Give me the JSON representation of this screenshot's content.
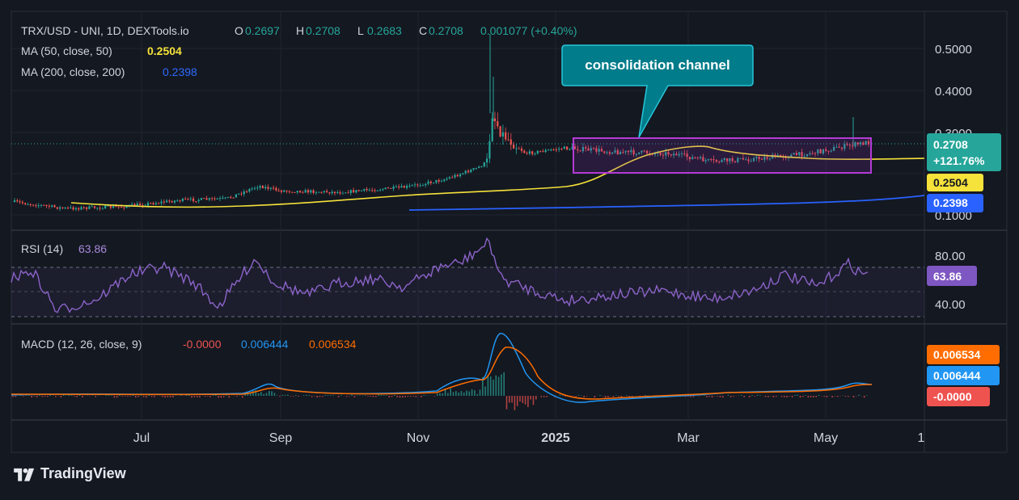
{
  "header": {
    "symbol": "TRX/USD - UNI, 1D, DEXTools.io",
    "ohlc": [
      {
        "k": "O",
        "v": "0.2697"
      },
      {
        "k": "H",
        "v": "0.2708"
      },
      {
        "k": "L",
        "v": "0.2683"
      },
      {
        "k": "C",
        "v": "0.2708"
      }
    ],
    "change": "0.001077 (+0.40%)",
    "ma50_label": "MA (50, close, 50)",
    "ma50_value": "0.2504",
    "ma200_label": "MA (200, close, 200)",
    "ma200_value": "0.2398"
  },
  "annotation": {
    "text": "consolidation channel"
  },
  "price_axis": {
    "ticks": [
      "0.5000",
      "0.4000",
      "0.3000",
      "0.1000"
    ]
  },
  "price_badges": {
    "last_price": "0.2708",
    "last_change": "+121.76%",
    "ma50": "0.2504",
    "ma200": "0.2398"
  },
  "rsi": {
    "label": "RSI (14)",
    "value": "63.86",
    "ticks": [
      "80.00",
      "40.00"
    ]
  },
  "macd": {
    "label": "MACD (12, 26, close, 9)",
    "hist": "-0.0000",
    "macd": "0.006444",
    "signal": "0.006534",
    "badges": [
      "0.006534",
      "0.006444",
      "-0.0000"
    ]
  },
  "time_axis": {
    "labels": [
      "Jul",
      "Sep",
      "Nov",
      "2025",
      "Mar",
      "May",
      "1"
    ]
  },
  "brand": {
    "name": "TradingView"
  },
  "colors": {
    "background": "#141821",
    "up": "#26a69a",
    "down": "#ef5350",
    "ma50": "#f5e23a",
    "ma200": "#2962ff",
    "rsi": "#8b63c8",
    "macd": "#2196f3",
    "signal": "#ff6d00",
    "box": "#b33bd6",
    "callout": "#007c8a"
  },
  "chart_data": {
    "type": "candlestick",
    "x_range": [
      "2024-06",
      "2025-05"
    ],
    "y_range": [
      0.1,
      0.55
    ],
    "price_series": [
      {
        "x": "2024-06-01",
        "y": 0.121
      },
      {
        "x": "2024-06-20",
        "y": 0.117
      },
      {
        "x": "2024-07-10",
        "y": 0.125
      },
      {
        "x": "2024-07-30",
        "y": 0.128
      },
      {
        "x": "2024-08-15",
        "y": 0.135
      },
      {
        "x": "2024-08-25",
        "y": 0.162
      },
      {
        "x": "2024-09-05",
        "y": 0.152
      },
      {
        "x": "2024-09-25",
        "y": 0.153
      },
      {
        "x": "2024-10-15",
        "y": 0.158
      },
      {
        "x": "2024-11-05",
        "y": 0.163
      },
      {
        "x": "2024-11-20",
        "y": 0.185
      },
      {
        "x": "2024-11-30",
        "y": 0.21
      },
      {
        "x": "2024-12-03",
        "y": 0.44
      },
      {
        "x": "2024-12-10",
        "y": 0.27
      },
      {
        "x": "2024-12-20",
        "y": 0.25
      },
      {
        "x": "2025-01-10",
        "y": 0.24
      },
      {
        "x": "2025-02-01",
        "y": 0.235
      },
      {
        "x": "2025-02-25",
        "y": 0.25
      },
      {
        "x": "2025-03-15",
        "y": 0.232
      },
      {
        "x": "2025-04-10",
        "y": 0.24
      },
      {
        "x": "2025-05-05",
        "y": 0.25
      },
      {
        "x": "2025-05-25",
        "y": 0.2708
      }
    ],
    "ma50_last": 0.2504,
    "ma200_last": 0.2398,
    "rsi_last": 63.86,
    "rsi_range": [
      20,
      100
    ],
    "macd_last": {
      "macd": 0.006444,
      "signal": 0.006534,
      "hist": -0.0
    }
  }
}
